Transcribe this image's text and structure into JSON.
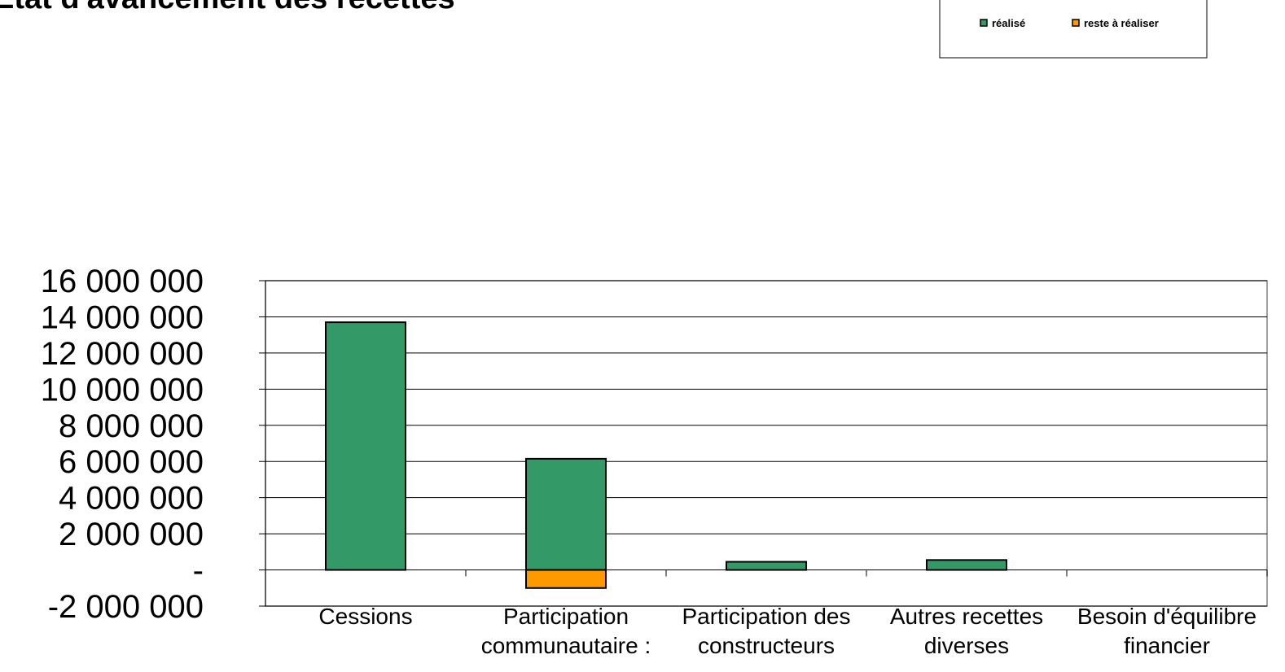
{
  "chart_data": {
    "type": "bar",
    "stacked": true,
    "title": "Etat d'avancement des recettes",
    "categories": [
      "Cessions",
      "Participation communautaire :",
      "Participation des constructeurs",
      "Autres recettes diverses",
      "Besoin d'équilibre financier"
    ],
    "series": [
      {
        "name": "réalisé",
        "color": "#339966",
        "values": [
          13700000,
          6150000,
          450000,
          550000,
          0
        ]
      },
      {
        "name": "reste à réaliser",
        "color": "#ff9900",
        "values": [
          0,
          -1000000,
          0,
          0,
          0
        ]
      }
    ],
    "ylim": [
      -2000000,
      16000000
    ],
    "yticks": [
      {
        "value": -2000000,
        "label": "-2 000 000"
      },
      {
        "value": 0,
        "label": "-"
      },
      {
        "value": 2000000,
        "label": "2 000 000"
      },
      {
        "value": 4000000,
        "label": "4 000 000"
      },
      {
        "value": 6000000,
        "label": "6 000 000"
      },
      {
        "value": 8000000,
        "label": "8 000 000"
      },
      {
        "value": 10000000,
        "label": "10 000 000"
      },
      {
        "value": 12000000,
        "label": "12 000 000"
      },
      {
        "value": 14000000,
        "label": "14 000 000"
      },
      {
        "value": 16000000,
        "label": "16 000 000"
      }
    ],
    "grid": true
  }
}
